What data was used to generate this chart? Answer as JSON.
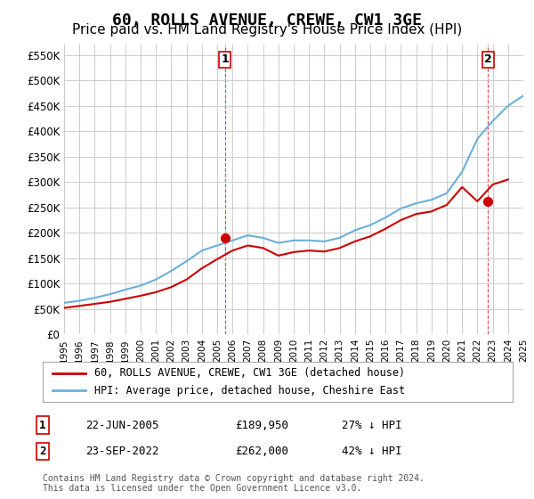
{
  "title": "60, ROLLS AVENUE, CREWE, CW1 3GE",
  "subtitle": "Price paid vs. HM Land Registry's House Price Index (HPI)",
  "title_fontsize": 13,
  "subtitle_fontsize": 11,
  "background_color": "#ffffff",
  "grid_color": "#cccccc",
  "ylim": [
    0,
    570000
  ],
  "yticks": [
    0,
    50000,
    100000,
    150000,
    200000,
    250000,
    300000,
    350000,
    400000,
    450000,
    500000,
    550000
  ],
  "ytick_labels": [
    "£0",
    "£50K",
    "£100K",
    "£150K",
    "£200K",
    "£250K",
    "£300K",
    "£350K",
    "£400K",
    "£450K",
    "£500K",
    "£550K"
  ],
  "hpi_color": "#6ab0d8",
  "price_color": "#cc0000",
  "marker1_date_idx": 10.5,
  "marker2_date_idx": 27.8,
  "marker1_label": "1",
  "marker2_label": "2",
  "marker1_price": 189950,
  "marker2_price": 262000,
  "legend_line1": "60, ROLLS AVENUE, CREWE, CW1 3GE (detached house)",
  "legend_line2": "HPI: Average price, detached house, Cheshire East",
  "table_row1": [
    "1",
    "22-JUN-2005",
    "£189,950",
    "27% ↓ HPI"
  ],
  "table_row2": [
    "2",
    "23-SEP-2022",
    "£262,000",
    "42% ↓ HPI"
  ],
  "footer": "Contains HM Land Registry data © Crown copyright and database right 2024.\nThis data is licensed under the Open Government Licence v3.0.",
  "hpi_data": {
    "years": [
      1995,
      1996,
      1997,
      1998,
      1999,
      2000,
      2001,
      2002,
      2003,
      2004,
      2005,
      2006,
      2007,
      2008,
      2009,
      2010,
      2011,
      2012,
      2013,
      2014,
      2015,
      2016,
      2017,
      2018,
      2019,
      2020,
      2021,
      2022,
      2023,
      2024,
      2025
    ],
    "values": [
      62000,
      66000,
      72000,
      79000,
      88000,
      96000,
      108000,
      125000,
      144000,
      165000,
      175000,
      185000,
      195000,
      190000,
      180000,
      185000,
      185000,
      183000,
      190000,
      205000,
      215000,
      230000,
      248000,
      258000,
      265000,
      278000,
      320000,
      385000,
      420000,
      450000,
      470000
    ]
  },
  "price_data": {
    "years": [
      1995,
      1996,
      1997,
      1998,
      1999,
      2000,
      2001,
      2002,
      2003,
      2004,
      2005,
      2006,
      2007,
      2008,
      2009,
      2010,
      2011,
      2012,
      2013,
      2014,
      2015,
      2016,
      2017,
      2018,
      2019,
      2020,
      2021,
      2022,
      2023,
      2024
    ],
    "values": [
      52000,
      56000,
      60000,
      64000,
      70000,
      76000,
      83000,
      93000,
      108000,
      130000,
      148000,
      165000,
      175000,
      170000,
      155000,
      162000,
      165000,
      163000,
      170000,
      183000,
      193000,
      208000,
      225000,
      237000,
      242000,
      255000,
      290000,
      262000,
      295000,
      305000
    ]
  },
  "xmin_year": 1995,
  "xmax_year": 2025,
  "xtick_years": [
    1995,
    1996,
    1997,
    1998,
    1999,
    2000,
    2001,
    2002,
    2003,
    2004,
    2005,
    2006,
    2007,
    2008,
    2009,
    2010,
    2011,
    2012,
    2013,
    2014,
    2015,
    2016,
    2017,
    2018,
    2019,
    2020,
    2021,
    2022,
    2023,
    2024,
    2025
  ]
}
